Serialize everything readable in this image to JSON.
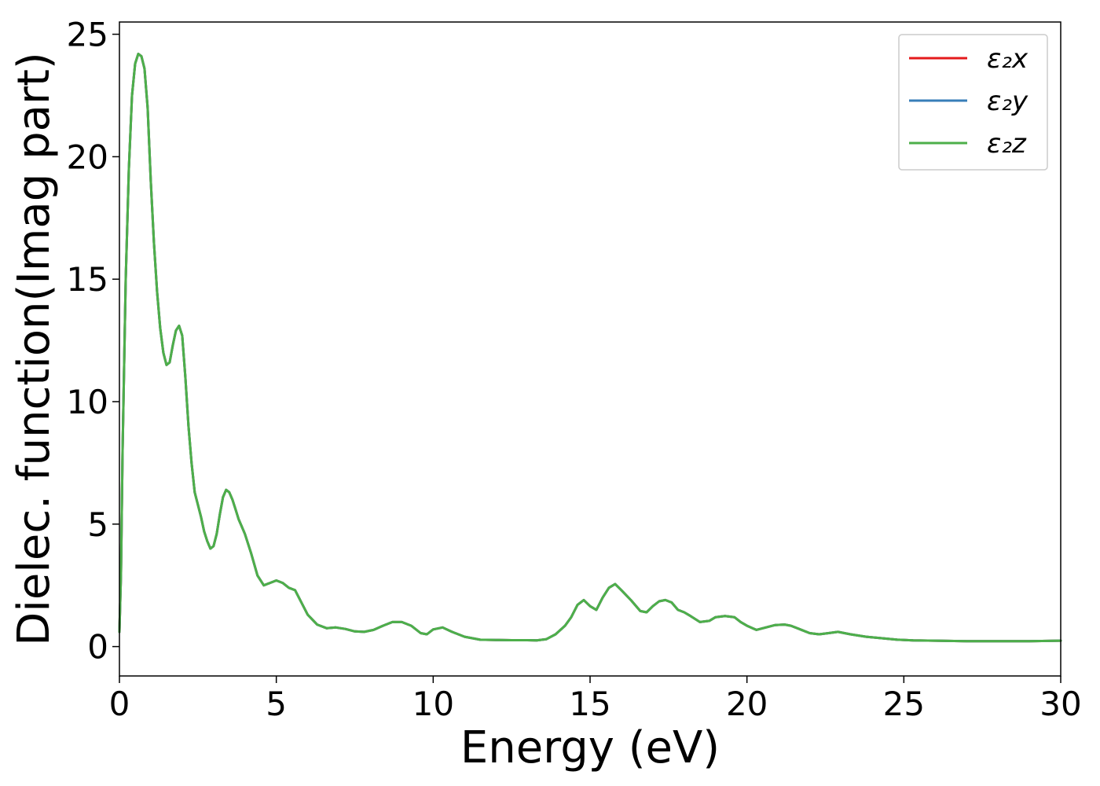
{
  "chart_data": {
    "type": "line",
    "xlabel": "Energy (eV)",
    "ylabel": "Dielec. function(Imag part)",
    "xlim": [
      0,
      30
    ],
    "ylim": [
      -1.2,
      25.5
    ],
    "xticks": [
      "0",
      "5",
      "10",
      "15",
      "20",
      "25",
      "30"
    ],
    "yticks": [
      "0",
      "5",
      "10",
      "15",
      "20",
      "25"
    ],
    "grid": false,
    "legend_position": "top-right",
    "x": [
      0,
      0.05,
      0.1,
      0.2,
      0.3,
      0.4,
      0.5,
      0.6,
      0.7,
      0.8,
      0.9,
      1.0,
      1.1,
      1.2,
      1.3,
      1.4,
      1.5,
      1.6,
      1.7,
      1.8,
      1.9,
      2.0,
      2.1,
      2.2,
      2.3,
      2.4,
      2.5,
      2.6,
      2.7,
      2.8,
      2.9,
      3.0,
      3.1,
      3.2,
      3.3,
      3.4,
      3.5,
      3.6,
      3.7,
      3.8,
      3.9,
      4.0,
      4.2,
      4.4,
      4.6,
      4.8,
      5.0,
      5.2,
      5.4,
      5.6,
      5.8,
      6.0,
      6.3,
      6.6,
      6.9,
      7.2,
      7.5,
      7.8,
      8.1,
      8.4,
      8.7,
      9.0,
      9.3,
      9.6,
      9.8,
      10.0,
      10.3,
      10.6,
      11.0,
      11.5,
      12.0,
      12.5,
      13.0,
      13.3,
      13.6,
      13.9,
      14.2,
      14.4,
      14.6,
      14.8,
      15.0,
      15.2,
      15.4,
      15.6,
      15.8,
      16.0,
      16.3,
      16.6,
      16.8,
      17.0,
      17.2,
      17.4,
      17.6,
      17.8,
      18.0,
      18.2,
      18.5,
      18.8,
      19.0,
      19.3,
      19.6,
      19.8,
      20.0,
      20.3,
      20.6,
      20.9,
      21.2,
      21.4,
      21.7,
      22.0,
      22.3,
      22.6,
      22.9,
      23.3,
      23.8,
      24.3,
      24.8,
      25.3,
      26.0,
      27.0,
      28.0,
      29.0,
      30.0
    ],
    "series": [
      {
        "name": "ε₂x",
        "color": "#e41a1c",
        "values": [
          0.6,
          3,
          8,
          15,
          19.5,
          22.5,
          23.8,
          24.2,
          24.1,
          23.6,
          22.0,
          19.0,
          16.5,
          14.5,
          13.0,
          12.0,
          11.5,
          11.6,
          12.3,
          12.9,
          13.1,
          12.7,
          11.0,
          9.0,
          7.5,
          6.3,
          5.8,
          5.3,
          4.7,
          4.3,
          4.0,
          4.1,
          4.6,
          5.4,
          6.1,
          6.4,
          6.3,
          6.0,
          5.6,
          5.2,
          4.9,
          4.6,
          3.8,
          2.9,
          2.5,
          2.6,
          2.7,
          2.6,
          2.4,
          2.3,
          1.8,
          1.3,
          0.9,
          0.75,
          0.78,
          0.72,
          0.62,
          0.6,
          0.68,
          0.85,
          1.0,
          1.0,
          0.85,
          0.55,
          0.5,
          0.7,
          0.78,
          0.6,
          0.4,
          0.28,
          0.27,
          0.26,
          0.26,
          0.25,
          0.3,
          0.5,
          0.85,
          1.2,
          1.7,
          1.9,
          1.65,
          1.5,
          2.0,
          2.4,
          2.55,
          2.3,
          1.9,
          1.45,
          1.4,
          1.65,
          1.85,
          1.9,
          1.8,
          1.5,
          1.4,
          1.25,
          1.0,
          1.05,
          1.2,
          1.25,
          1.2,
          1.0,
          0.85,
          0.68,
          0.78,
          0.88,
          0.9,
          0.85,
          0.7,
          0.55,
          0.5,
          0.55,
          0.6,
          0.5,
          0.4,
          0.34,
          0.28,
          0.25,
          0.24,
          0.22,
          0.22,
          0.22,
          0.24
        ]
      },
      {
        "name": "ε₂y",
        "color": "#377eb8",
        "values": [
          0.6,
          3,
          8,
          15,
          19.5,
          22.5,
          23.8,
          24.2,
          24.1,
          23.6,
          22.0,
          19.0,
          16.5,
          14.5,
          13.0,
          12.0,
          11.5,
          11.6,
          12.3,
          12.9,
          13.1,
          12.7,
          11.0,
          9.0,
          7.5,
          6.3,
          5.8,
          5.3,
          4.7,
          4.3,
          4.0,
          4.1,
          4.6,
          5.4,
          6.1,
          6.4,
          6.3,
          6.0,
          5.6,
          5.2,
          4.9,
          4.6,
          3.8,
          2.9,
          2.5,
          2.6,
          2.7,
          2.6,
          2.4,
          2.3,
          1.8,
          1.3,
          0.9,
          0.75,
          0.78,
          0.72,
          0.62,
          0.6,
          0.68,
          0.85,
          1.0,
          1.0,
          0.85,
          0.55,
          0.5,
          0.7,
          0.78,
          0.6,
          0.4,
          0.28,
          0.27,
          0.26,
          0.26,
          0.25,
          0.3,
          0.5,
          0.85,
          1.2,
          1.7,
          1.9,
          1.65,
          1.5,
          2.0,
          2.4,
          2.55,
          2.3,
          1.9,
          1.45,
          1.4,
          1.65,
          1.85,
          1.9,
          1.8,
          1.5,
          1.4,
          1.25,
          1.0,
          1.05,
          1.2,
          1.25,
          1.2,
          1.0,
          0.85,
          0.68,
          0.78,
          0.88,
          0.9,
          0.85,
          0.7,
          0.55,
          0.5,
          0.55,
          0.6,
          0.5,
          0.4,
          0.34,
          0.28,
          0.25,
          0.24,
          0.22,
          0.22,
          0.22,
          0.24
        ]
      },
      {
        "name": "ε₂z",
        "color": "#4daf4a",
        "values": [
          0.6,
          3,
          8,
          15,
          19.5,
          22.5,
          23.8,
          24.2,
          24.1,
          23.6,
          22.0,
          19.0,
          16.5,
          14.5,
          13.0,
          12.0,
          11.5,
          11.6,
          12.3,
          12.9,
          13.1,
          12.7,
          11.0,
          9.0,
          7.5,
          6.3,
          5.8,
          5.3,
          4.7,
          4.3,
          4.0,
          4.1,
          4.6,
          5.4,
          6.1,
          6.4,
          6.3,
          6.0,
          5.6,
          5.2,
          4.9,
          4.6,
          3.8,
          2.9,
          2.5,
          2.6,
          2.7,
          2.6,
          2.4,
          2.3,
          1.8,
          1.3,
          0.9,
          0.75,
          0.78,
          0.72,
          0.62,
          0.6,
          0.68,
          0.85,
          1.0,
          1.0,
          0.85,
          0.55,
          0.5,
          0.7,
          0.78,
          0.6,
          0.4,
          0.28,
          0.27,
          0.26,
          0.26,
          0.25,
          0.3,
          0.5,
          0.85,
          1.2,
          1.7,
          1.9,
          1.65,
          1.5,
          2.0,
          2.4,
          2.55,
          2.3,
          1.9,
          1.45,
          1.4,
          1.65,
          1.85,
          1.9,
          1.8,
          1.5,
          1.4,
          1.25,
          1.0,
          1.05,
          1.2,
          1.25,
          1.2,
          1.0,
          0.85,
          0.68,
          0.78,
          0.88,
          0.9,
          0.85,
          0.7,
          0.55,
          0.5,
          0.55,
          0.6,
          0.5,
          0.4,
          0.34,
          0.28,
          0.25,
          0.24,
          0.22,
          0.22,
          0.22,
          0.24
        ]
      }
    ]
  }
}
